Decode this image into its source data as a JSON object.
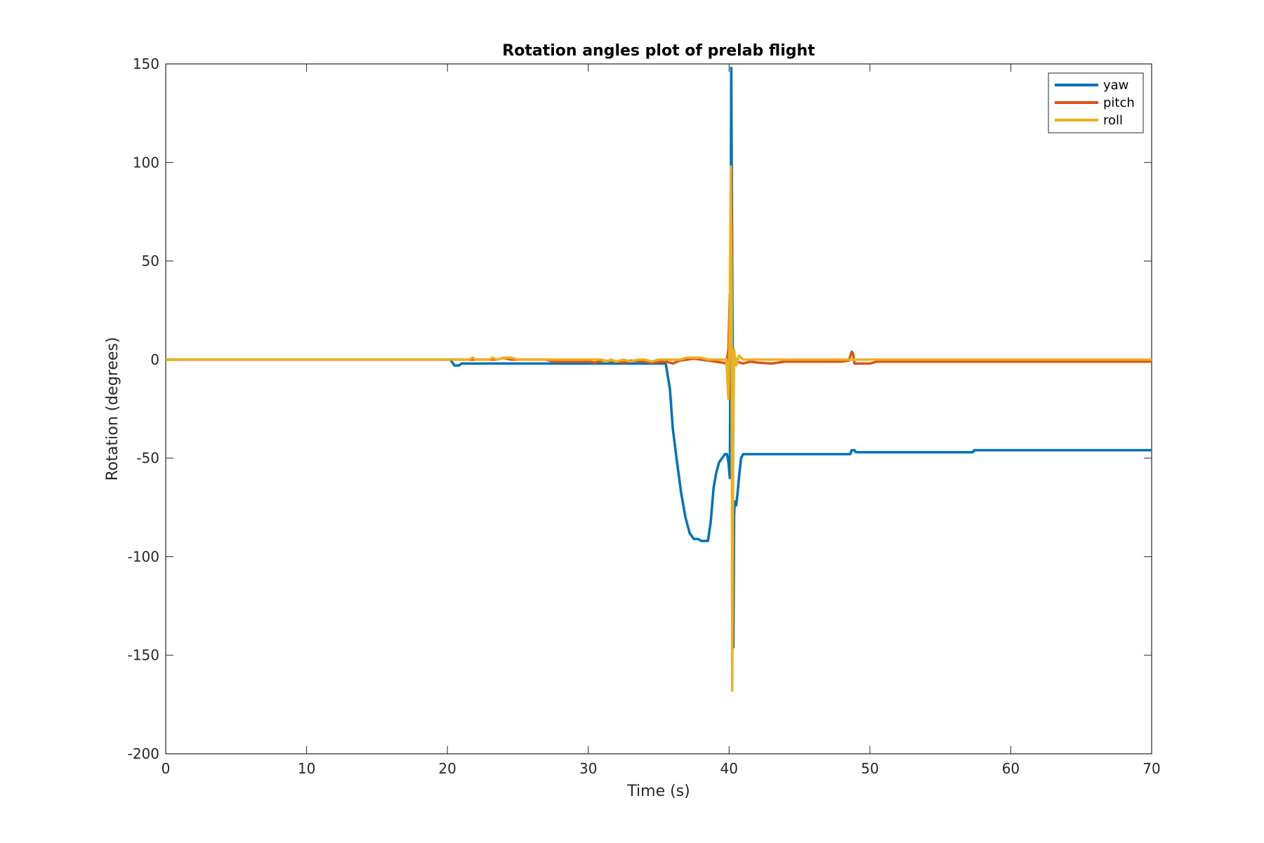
{
  "chart_data": {
    "type": "line",
    "title": "Rotation angles plot of prelab flight",
    "xlabel": "Time (s)",
    "ylabel": "Rotation (degrees)",
    "xlim": [
      0,
      70
    ],
    "ylim": [
      -200,
      150
    ],
    "xticks": [
      0,
      10,
      20,
      30,
      40,
      50,
      60,
      70
    ],
    "yticks": [
      150,
      100,
      50,
      0,
      -50,
      -100,
      -150,
      -200
    ],
    "xtick_labels": [
      "0",
      "10",
      "20",
      "30",
      "40",
      "50",
      "60",
      "70"
    ],
    "ytick_labels": [
      "150",
      "100",
      "50",
      "0",
      "-50",
      "-100",
      "-150",
      "-200"
    ],
    "grid": false,
    "legend_position": "top-right",
    "series": [
      {
        "name": "yaw",
        "color": "#0072BD",
        "x": [
          0,
          20.2,
          20.5,
          20.8,
          21.0,
          35.3,
          35.5,
          35.8,
          36.0,
          36.3,
          36.6,
          36.9,
          37.2,
          37.5,
          37.8,
          38.0,
          38.5,
          38.7,
          38.9,
          39.1,
          39.3,
          39.5,
          39.7,
          39.85,
          39.95,
          40.05,
          40.1,
          40.15,
          40.2,
          40.25,
          40.3,
          40.35,
          40.4,
          40.5,
          40.6,
          40.7,
          40.85,
          41.0,
          48.6,
          48.7,
          48.9,
          49.0,
          57.3,
          57.4,
          70
        ],
        "y": [
          0,
          0,
          -3,
          -3,
          -2,
          -2,
          -2,
          -15,
          -35,
          -52,
          -68,
          -80,
          -88,
          -91,
          -91,
          -92,
          -92,
          -82,
          -65,
          -57,
          -52,
          -50,
          -48,
          -48,
          -52,
          -60,
          20,
          148,
          80,
          0,
          -146,
          -80,
          -72,
          -74,
          -68,
          -60,
          -50,
          -48,
          -48,
          -46,
          -46,
          -47,
          -47,
          -46,
          -46
        ]
      },
      {
        "name": "pitch",
        "color": "#D95319",
        "x": [
          0,
          23.5,
          24.0,
          24.5,
          25.0,
          27.0,
          27.5,
          30.0,
          30.5,
          31.0,
          32.0,
          32.5,
          33.0,
          34.0,
          34.5,
          35.5,
          36.0,
          36.5,
          37.0,
          37.5,
          38.0,
          39.0,
          39.5,
          39.8,
          39.95,
          40.05,
          40.15,
          40.25,
          40.35,
          40.5,
          41.0,
          41.5,
          42.0,
          43.0,
          43.5,
          44.0,
          45.0,
          46.0,
          47.0,
          48.0,
          48.5,
          48.7,
          48.8,
          48.9,
          49.0,
          50.0,
          50.5,
          70
        ],
        "y": [
          0,
          0,
          0.8,
          0,
          0,
          0,
          -1,
          -1,
          -1.5,
          -0.5,
          -1,
          -1.5,
          -0.5,
          -1,
          -1.5,
          -1,
          -2,
          -0.5,
          0,
          0.5,
          0,
          -1,
          -1.5,
          -2,
          5,
          33,
          5,
          -1,
          3,
          -1,
          -2,
          -1,
          -1.5,
          -2,
          -1.5,
          -1,
          -1,
          -1,
          -1,
          -1,
          -0.5,
          4,
          3,
          -2,
          -2,
          -2,
          -1,
          -1
        ]
      },
      {
        "name": "roll",
        "color": "#EDB120",
        "x": [
          0,
          21.5,
          21.8,
          22.0,
          23.0,
          23.2,
          23.5,
          24.0,
          24.5,
          25.0,
          31.0,
          31.3,
          31.6,
          32.0,
          32.5,
          33.0,
          33.5,
          34.0,
          34.5,
          35.0,
          36.5,
          37.0,
          37.5,
          38.0,
          38.5,
          39.0,
          39.5,
          39.8,
          39.95,
          40.05,
          40.12,
          40.18,
          40.22,
          40.28,
          40.35,
          40.5,
          40.7,
          41.0,
          70
        ],
        "y": [
          0,
          0,
          1,
          0,
          0,
          1,
          0,
          1,
          1,
          0,
          0,
          -1,
          0,
          -1,
          0,
          -1,
          0,
          0,
          -1,
          0,
          0,
          1,
          1,
          1,
          0,
          0,
          0,
          0,
          -20,
          20,
          98,
          30,
          -168,
          -60,
          5,
          -3,
          2,
          0,
          0
        ]
      }
    ]
  }
}
